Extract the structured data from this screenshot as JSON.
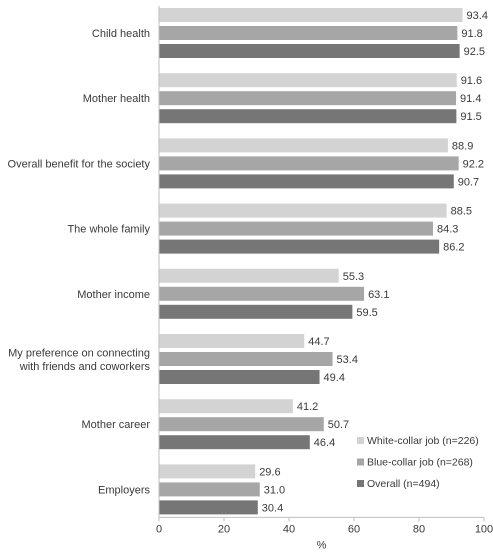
{
  "chart_data": {
    "type": "bar",
    "orientation": "horizontal",
    "categories": [
      [
        "Child health"
      ],
      [
        "Mother health"
      ],
      [
        "Overall benefit for the society"
      ],
      [
        "The whole family"
      ],
      [
        "Mother income"
      ],
      [
        "My preference on connecting",
        "with friends and coworkers"
      ],
      [
        "Mother career"
      ],
      [
        "Employers"
      ]
    ],
    "series": [
      {
        "name": "White-collar job (n=226)",
        "color": "#d3d3d3",
        "values": [
          93.4,
          91.6,
          88.9,
          88.5,
          55.3,
          44.7,
          41.2,
          29.6
        ]
      },
      {
        "name": "Blue-collar job (n=268)",
        "color": "#a6a6a6",
        "values": [
          91.8,
          91.4,
          92.2,
          84.3,
          63.1,
          53.4,
          50.7,
          31.0
        ]
      },
      {
        "name": "Overall (n=494)",
        "color": "#767676",
        "values": [
          92.5,
          91.5,
          90.7,
          86.2,
          59.5,
          49.4,
          46.4,
          30.4
        ]
      }
    ],
    "xlabel": "%",
    "ylabel": "",
    "xlim": [
      0,
      100
    ],
    "xticks": [
      0,
      20,
      40,
      60,
      80,
      100
    ],
    "grid": false,
    "legend_position": "bottom-right",
    "value_decimals": 1
  }
}
